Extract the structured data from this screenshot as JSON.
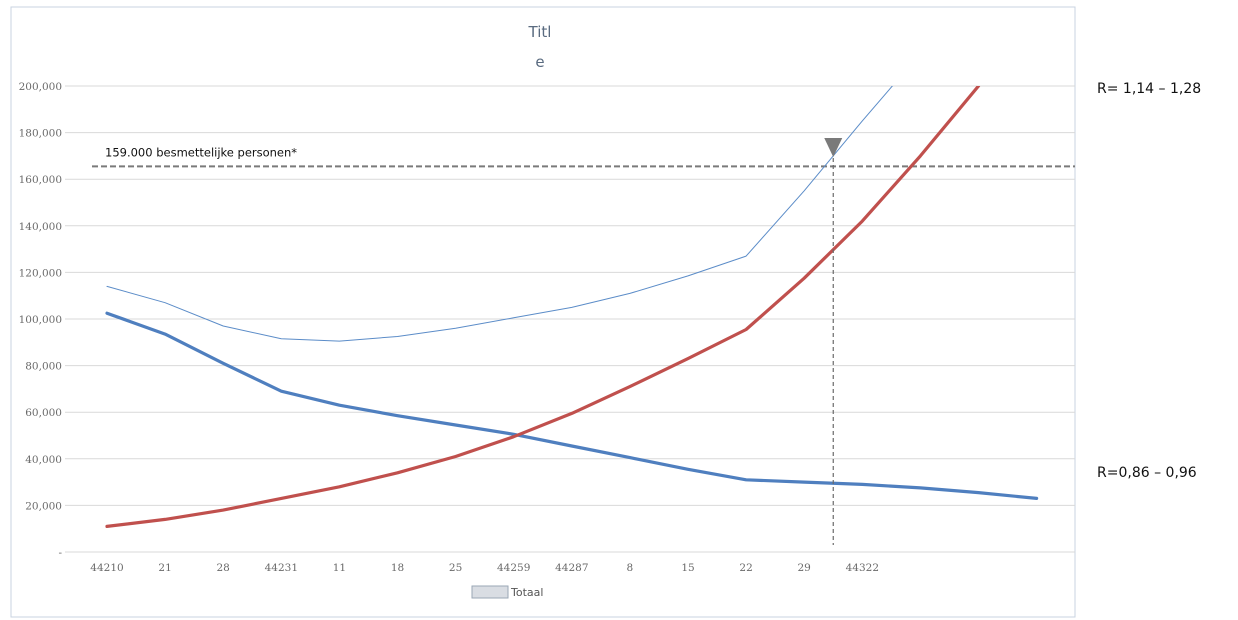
{
  "chart_data": {
    "type": "line",
    "title_lines": [
      "Titl",
      "e"
    ],
    "x": [
      "44210",
      "21",
      "28",
      "44231",
      "11",
      "18",
      "25",
      "44259",
      "44287",
      "8",
      "15",
      "22",
      "29",
      "44322",
      "",
      "",
      ""
    ],
    "ylim": [
      0,
      200000
    ],
    "y_ticks": [
      0,
      20000,
      40000,
      60000,
      80000,
      100000,
      120000,
      140000,
      160000,
      180000,
      200000
    ],
    "y_tick_labels": [
      "-",
      "20,000",
      "40,000",
      "60,000",
      "80,000",
      "100,000",
      "120,000",
      "140,000",
      "160,000",
      "180,000",
      "200,000"
    ],
    "grid": true,
    "series": [
      {
        "name": "Totaal",
        "color": "#5b8cc8",
        "values": [
          114000,
          107000,
          97000,
          91500,
          90500,
          92500,
          96000,
          100500,
          105000,
          111000,
          118500,
          127000,
          155000,
          185000,
          214000,
          null,
          null
        ]
      },
      {
        "color": "#4f7fbf",
        "values": [
          102500,
          93500,
          81000,
          69000,
          63000,
          58500,
          54500,
          50500,
          45500,
          40500,
          35500,
          31000,
          30000,
          29000,
          27500,
          25500,
          23000
        ]
      },
      {
        "color": "#c0504d",
        "values": [
          11000,
          14000,
          18000,
          23000,
          28000,
          34000,
          41000,
          49500,
          59500,
          71000,
          83000,
          95500,
          117500,
          142000,
          170000,
          200000,
          null
        ]
      }
    ],
    "legend": {
      "label": "Totaal",
      "placement": "bottom"
    },
    "threshold": {
      "value": 165500,
      "label": "159.000 besmettelijke personen*"
    },
    "marker_x": 12.5,
    "annotations": {
      "top": "R= 1,14 – 1,28",
      "bottom": "R=0,86 – 0,96"
    }
  }
}
